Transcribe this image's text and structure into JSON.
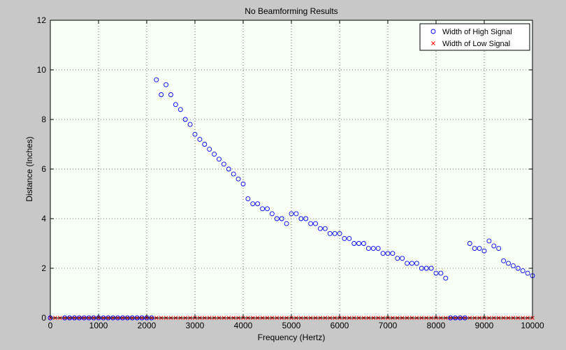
{
  "chart_data": {
    "type": "scatter",
    "title": "No Beamforming Results",
    "xlabel": "Frequency (Hertz)",
    "ylabel": "Distance (Inches)",
    "xlim": [
      0,
      10000
    ],
    "ylim": [
      0,
      12
    ],
    "xticks": [
      0,
      1000,
      2000,
      3000,
      4000,
      5000,
      6000,
      7000,
      8000,
      9000,
      10000
    ],
    "yticks": [
      0,
      2,
      4,
      6,
      8,
      10,
      12
    ],
    "grid": true,
    "legend_position": "top-right",
    "colors": {
      "high": "#0000ff",
      "low": "#ff0000",
      "plot_bg": "#f7fff7",
      "figure_bg": "#c8c8c8"
    },
    "series": [
      {
        "name": "Width of High Signal",
        "marker": "circle",
        "color": "#0000ff",
        "points": [
          [
            0,
            0
          ],
          [
            300,
            0
          ],
          [
            400,
            0
          ],
          [
            500,
            0
          ],
          [
            600,
            0
          ],
          [
            700,
            0
          ],
          [
            800,
            0
          ],
          [
            900,
            0
          ],
          [
            1000,
            0
          ],
          [
            1100,
            0
          ],
          [
            1200,
            0
          ],
          [
            1300,
            0
          ],
          [
            1400,
            0
          ],
          [
            1500,
            0
          ],
          [
            1600,
            0
          ],
          [
            1700,
            0
          ],
          [
            1800,
            0
          ],
          [
            1900,
            0
          ],
          [
            2000,
            0
          ],
          [
            2100,
            0
          ],
          [
            2200,
            9.6
          ],
          [
            2300,
            9.0
          ],
          [
            2400,
            9.4
          ],
          [
            2500,
            9.0
          ],
          [
            2600,
            8.6
          ],
          [
            2700,
            8.4
          ],
          [
            2800,
            8.0
          ],
          [
            2900,
            7.8
          ],
          [
            3000,
            7.4
          ],
          [
            3100,
            7.2
          ],
          [
            3200,
            7.0
          ],
          [
            3300,
            6.8
          ],
          [
            3400,
            6.6
          ],
          [
            3500,
            6.4
          ],
          [
            3600,
            6.2
          ],
          [
            3700,
            6.0
          ],
          [
            3800,
            5.8
          ],
          [
            3900,
            5.6
          ],
          [
            4000,
            5.4
          ],
          [
            4100,
            4.8
          ],
          [
            4200,
            4.6
          ],
          [
            4300,
            4.6
          ],
          [
            4400,
            4.4
          ],
          [
            4500,
            4.4
          ],
          [
            4600,
            4.2
          ],
          [
            4700,
            4.0
          ],
          [
            4800,
            4.0
          ],
          [
            4900,
            3.8
          ],
          [
            5000,
            4.2
          ],
          [
            5100,
            4.2
          ],
          [
            5200,
            4.0
          ],
          [
            5300,
            4.0
          ],
          [
            5400,
            3.8
          ],
          [
            5500,
            3.8
          ],
          [
            5600,
            3.6
          ],
          [
            5700,
            3.6
          ],
          [
            5800,
            3.4
          ],
          [
            5900,
            3.4
          ],
          [
            6000,
            3.4
          ],
          [
            6100,
            3.2
          ],
          [
            6200,
            3.2
          ],
          [
            6300,
            3.0
          ],
          [
            6400,
            3.0
          ],
          [
            6500,
            3.0
          ],
          [
            6600,
            2.8
          ],
          [
            6700,
            2.8
          ],
          [
            6800,
            2.8
          ],
          [
            6900,
            2.6
          ],
          [
            7000,
            2.6
          ],
          [
            7100,
            2.6
          ],
          [
            7200,
            2.4
          ],
          [
            7300,
            2.4
          ],
          [
            7400,
            2.2
          ],
          [
            7500,
            2.2
          ],
          [
            7600,
            2.2
          ],
          [
            7700,
            2.0
          ],
          [
            7800,
            2.0
          ],
          [
            7900,
            2.0
          ],
          [
            8000,
            1.8
          ],
          [
            8100,
            1.8
          ],
          [
            8200,
            1.6
          ],
          [
            8300,
            0
          ],
          [
            8400,
            0
          ],
          [
            8500,
            0
          ],
          [
            8600,
            0
          ],
          [
            8700,
            3.0
          ],
          [
            8800,
            2.8
          ],
          [
            8900,
            2.8
          ],
          [
            9000,
            2.7
          ],
          [
            9100,
            3.1
          ],
          [
            9200,
            2.9
          ],
          [
            9300,
            2.8
          ],
          [
            9400,
            2.3
          ],
          [
            9500,
            2.2
          ],
          [
            9600,
            2.1
          ],
          [
            9700,
            2.0
          ],
          [
            9800,
            1.9
          ],
          [
            9900,
            1.8
          ],
          [
            10000,
            1.7
          ]
        ]
      },
      {
        "name": "Width of Low Signal",
        "marker": "x",
        "color": "#ff0000",
        "x_start": 0,
        "x_step": 100,
        "x_end": 10000,
        "constant_y": 0
      }
    ]
  }
}
